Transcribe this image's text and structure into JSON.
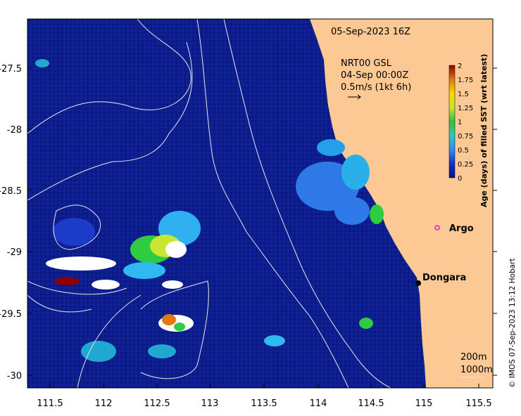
{
  "header": {
    "datetime": "05-Sep-2023 16Z"
  },
  "current_legend": {
    "line1": "NRT00 GSL",
    "line2": "04-Sep 00:00Z",
    "line3": "0.5m/s (1kt 6h)"
  },
  "axes": {
    "x_ticks": [
      "111.5",
      "112",
      "112.5",
      "113",
      "113.5",
      "114",
      "114.5",
      "115",
      "115.5"
    ],
    "y_ticks": [
      "-27.5",
      "-28",
      "-28.5",
      "-29",
      "-29.5",
      "-30"
    ]
  },
  "colorbar": {
    "title": "Age (days) of filled SST (wrt latest)",
    "ticks": [
      "2",
      "1.75",
      "1.5",
      "1.25",
      "1",
      "0.75",
      "0.5",
      "0.25",
      "0"
    ],
    "colors": [
      "#8b0000",
      "#d2691e",
      "#ffd700",
      "#c8e632",
      "#2ecc40",
      "#20c0a0",
      "#30b8f0",
      "#3060e0",
      "#08108a"
    ]
  },
  "places": [
    {
      "name": "Argo",
      "marker": "circle-open",
      "color": "#ff00ff"
    },
    {
      "name": "Dongara",
      "marker": "dot",
      "color": "#000000"
    }
  ],
  "contours": {
    "label1": "200m",
    "label2": "1000m"
  },
  "copyright": "© IMOS 07-Sep-2023 13:12 Hobart",
  "colors": {
    "ocean": "#0d1f8f",
    "land": "#fcc894",
    "contour": "#e8e8e8"
  }
}
